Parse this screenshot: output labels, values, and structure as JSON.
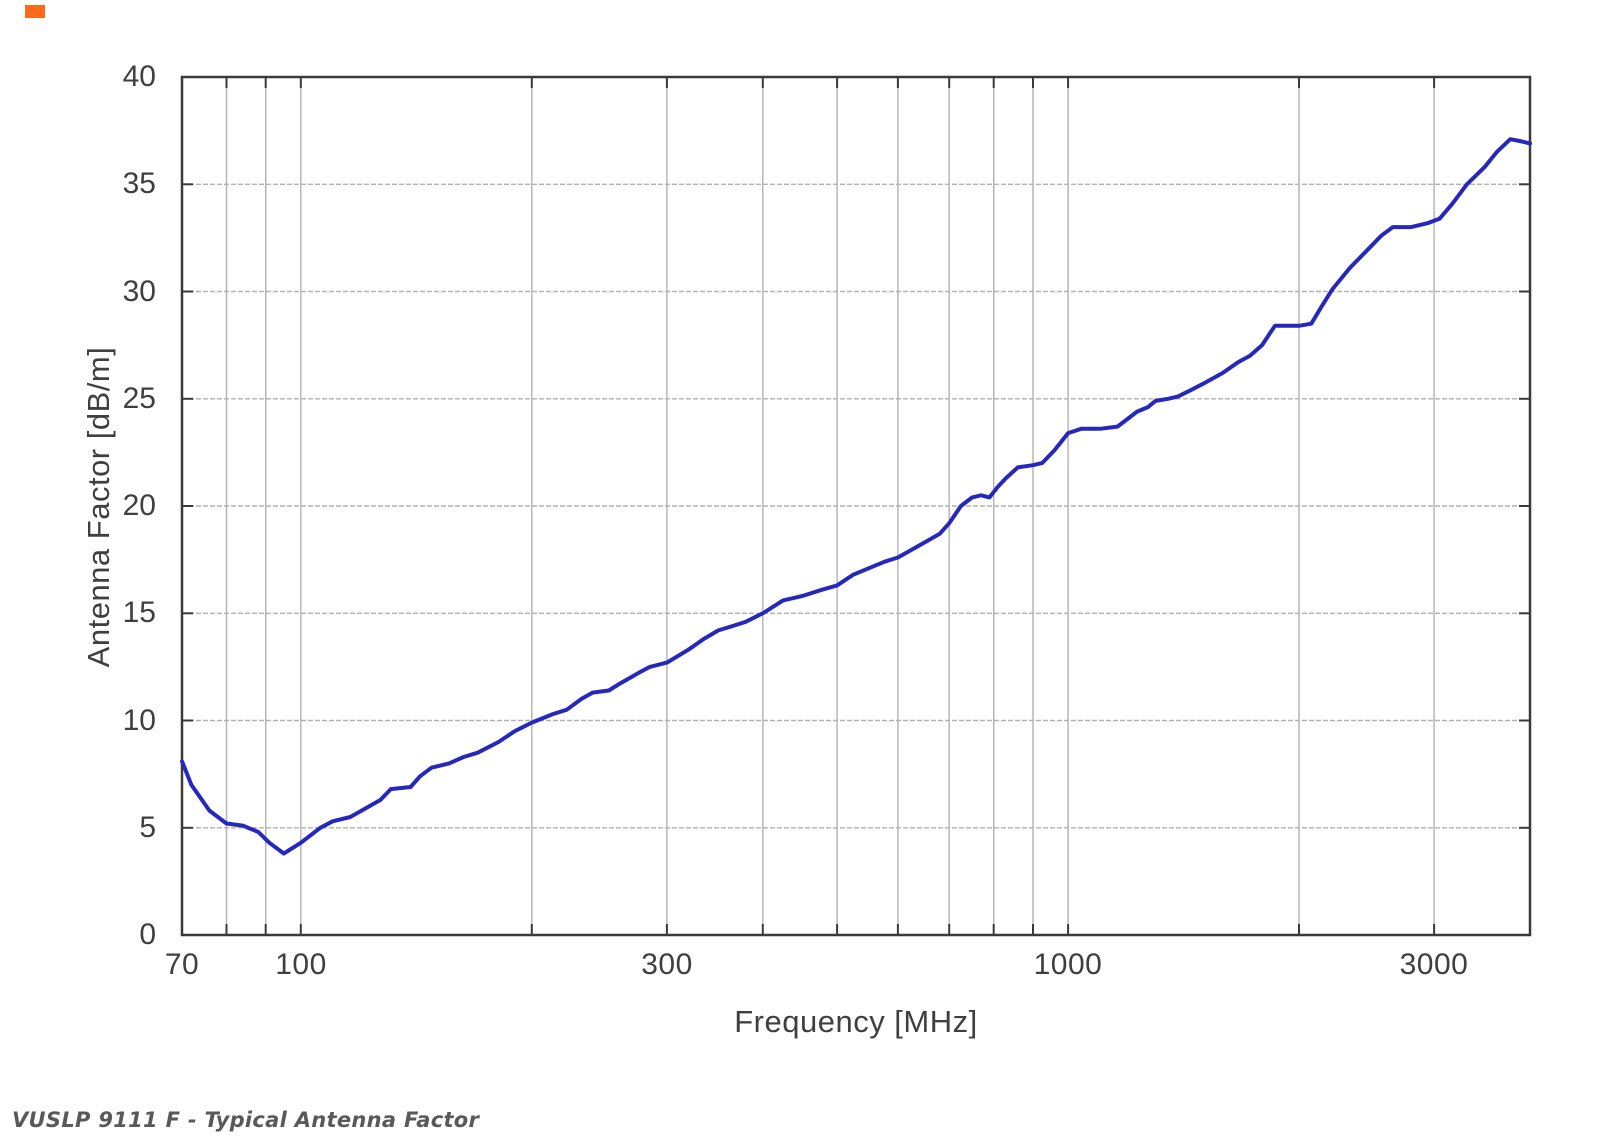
{
  "corner_marker": {
    "color": "#ff6a1a"
  },
  "caption": "VUSLP 9111 F - Typical Antenna Factor",
  "chart_data": {
    "type": "line",
    "title": "",
    "xlabel": "Frequency [MHz]",
    "ylabel": "Antenna Factor [dB/m]",
    "x_scale": "log",
    "xlim": [
      70,
      4000
    ],
    "ylim": [
      0,
      40
    ],
    "x_tick_values": [
      70,
      100,
      300,
      1000,
      3000
    ],
    "x_tick_labels": [
      "70",
      "100",
      "300",
      "1000",
      "3000"
    ],
    "x_gridlines": [
      80,
      90,
      100,
      200,
      300,
      400,
      500,
      600,
      700,
      800,
      900,
      1000,
      2000,
      3000
    ],
    "y_ticks": [
      0,
      5,
      10,
      15,
      20,
      25,
      30,
      35,
      40
    ],
    "grid": true,
    "legend": "none",
    "colors": {
      "line": "#2527bd",
      "grid": "#b2b2b2",
      "axis": "#3a3a3a",
      "text": "#3f3f3f",
      "caption": "#595959"
    },
    "series": [
      {
        "name": "Typical Antenna Factor",
        "points": [
          [
            70,
            8.1
          ],
          [
            72,
            7.0
          ],
          [
            76,
            5.8
          ],
          [
            80,
            5.2
          ],
          [
            84,
            5.1
          ],
          [
            88,
            4.8
          ],
          [
            91,
            4.3
          ],
          [
            95,
            3.8
          ],
          [
            100,
            4.3
          ],
          [
            106,
            5.0
          ],
          [
            110,
            5.3
          ],
          [
            116,
            5.5
          ],
          [
            120,
            5.8
          ],
          [
            127,
            6.3
          ],
          [
            131,
            6.8
          ],
          [
            139,
            6.9
          ],
          [
            143,
            7.4
          ],
          [
            148,
            7.8
          ],
          [
            156,
            8.0
          ],
          [
            163,
            8.3
          ],
          [
            170,
            8.5
          ],
          [
            181,
            9.0
          ],
          [
            190,
            9.5
          ],
          [
            200,
            9.9
          ],
          [
            213,
            10.3
          ],
          [
            222,
            10.5
          ],
          [
            232,
            11.0
          ],
          [
            240,
            11.3
          ],
          [
            252,
            11.4
          ],
          [
            260,
            11.7
          ],
          [
            275,
            12.2
          ],
          [
            285,
            12.5
          ],
          [
            300,
            12.7
          ],
          [
            320,
            13.3
          ],
          [
            335,
            13.8
          ],
          [
            350,
            14.2
          ],
          [
            365,
            14.4
          ],
          [
            380,
            14.6
          ],
          [
            400,
            15.0
          ],
          [
            425,
            15.6
          ],
          [
            450,
            15.8
          ],
          [
            478,
            16.1
          ],
          [
            500,
            16.3
          ],
          [
            525,
            16.8
          ],
          [
            550,
            17.1
          ],
          [
            576,
            17.4
          ],
          [
            600,
            17.6
          ],
          [
            650,
            18.3
          ],
          [
            680,
            18.7
          ],
          [
            700,
            19.2
          ],
          [
            725,
            20.0
          ],
          [
            750,
            20.4
          ],
          [
            770,
            20.5
          ],
          [
            790,
            20.4
          ],
          [
            810,
            20.9
          ],
          [
            830,
            21.3
          ],
          [
            860,
            21.8
          ],
          [
            900,
            21.9
          ],
          [
            925,
            22.0
          ],
          [
            960,
            22.6
          ],
          [
            1000,
            23.4
          ],
          [
            1040,
            23.6
          ],
          [
            1100,
            23.6
          ],
          [
            1160,
            23.7
          ],
          [
            1230,
            24.4
          ],
          [
            1270,
            24.6
          ],
          [
            1300,
            24.9
          ],
          [
            1350,
            25.0
          ],
          [
            1390,
            25.1
          ],
          [
            1445,
            25.4
          ],
          [
            1500,
            25.7
          ],
          [
            1590,
            26.2
          ],
          [
            1665,
            26.7
          ],
          [
            1725,
            27.0
          ],
          [
            1790,
            27.5
          ],
          [
            1860,
            28.4
          ],
          [
            2000,
            28.4
          ],
          [
            2075,
            28.5
          ],
          [
            2140,
            29.3
          ],
          [
            2210,
            30.1
          ],
          [
            2330,
            31.1
          ],
          [
            2450,
            31.9
          ],
          [
            2560,
            32.6
          ],
          [
            2650,
            33.0
          ],
          [
            2800,
            33.0
          ],
          [
            2950,
            33.2
          ],
          [
            3050,
            33.4
          ],
          [
            3170,
            34.1
          ],
          [
            3310,
            35.0
          ],
          [
            3490,
            35.8
          ],
          [
            3620,
            36.5
          ],
          [
            3770,
            37.1
          ],
          [
            3900,
            37.0
          ],
          [
            4000,
            36.9
          ]
        ]
      }
    ]
  }
}
